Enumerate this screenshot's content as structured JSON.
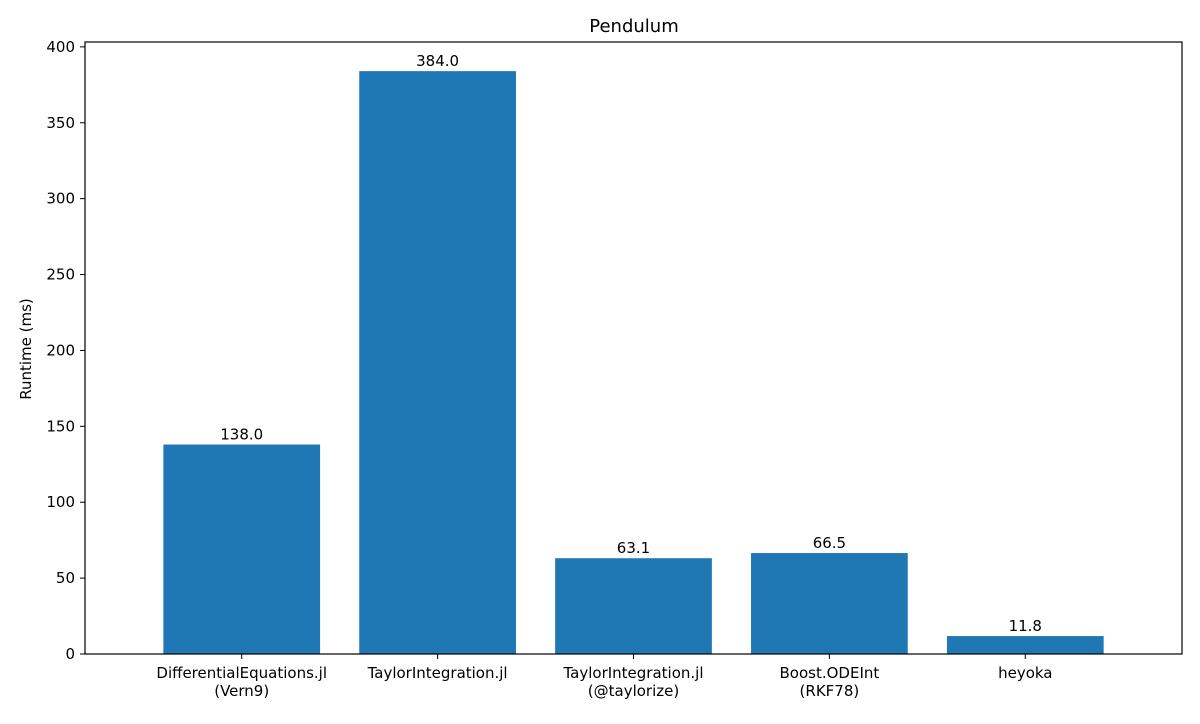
{
  "chart_data": {
    "type": "bar",
    "title": "Pendulum",
    "xlabel": "",
    "ylabel": "Runtime (ms)",
    "categories": [
      [
        "DifferentialEquations.jl",
        "(Vern9)"
      ],
      [
        "TaylorIntegration.jl"
      ],
      [
        "TaylorIntegration.jl",
        "(@taylorize)"
      ],
      [
        "Boost.ODEInt",
        "(RKF78)"
      ],
      [
        "heyoka"
      ]
    ],
    "values": [
      138.0,
      384.0,
      63.1,
      66.5,
      11.8
    ],
    "data_labels": [
      "138.0",
      "384.0",
      "63.1",
      "66.5",
      "11.8"
    ],
    "ylim": [
      0,
      403.2
    ],
    "yticks": [
      0,
      50,
      100,
      150,
      200,
      250,
      300,
      350,
      400
    ],
    "ytick_labels": [
      "0",
      "50",
      "100",
      "150",
      "200",
      "250",
      "300",
      "350",
      "400"
    ],
    "bar_color": "#1f77b4",
    "grid": false,
    "legend": "none"
  }
}
